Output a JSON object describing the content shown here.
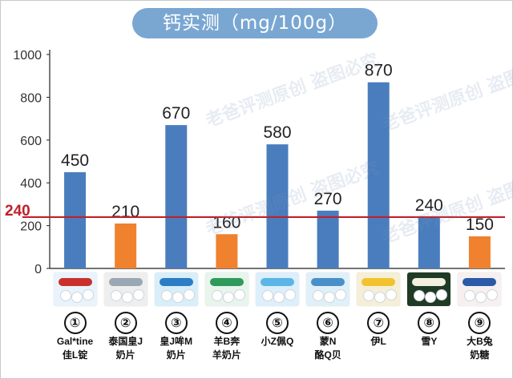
{
  "chart_data": {
    "type": "bar",
    "title": "钙实测（mg/100g）",
    "categories": [
      "①",
      "②",
      "③",
      "④",
      "⑤",
      "⑥",
      "⑦",
      "⑧",
      "⑨"
    ],
    "values": [
      450,
      210,
      670,
      160,
      580,
      270,
      870,
      240,
      150
    ],
    "bar_colors": [
      "#4a7dbd",
      "#f0812e",
      "#4a7dbd",
      "#f0812e",
      "#4a7dbd",
      "#4a7dbd",
      "#4a7dbd",
      "#4a7dbd",
      "#f0812e"
    ],
    "ylim": [
      0,
      1000
    ],
    "yticks": [
      0,
      200,
      400,
      600,
      800,
      1000
    ],
    "reference_line": {
      "value": 240,
      "label": "240",
      "color": "#c0202a"
    },
    "grid": false,
    "legend": "none"
  },
  "products": [
    {
      "number": "①",
      "name_lines": [
        "Gal*tine",
        "佳L锭"
      ]
    },
    {
      "number": "②",
      "name_lines": [
        "泰国皇J",
        "奶片"
      ]
    },
    {
      "number": "③",
      "name_lines": [
        "皇J哞M",
        "奶片"
      ]
    },
    {
      "number": "④",
      "name_lines": [
        "羊B奔",
        "羊奶片"
      ]
    },
    {
      "number": "⑤",
      "name_lines": [
        "小Z佩Q"
      ]
    },
    {
      "number": "⑥",
      "name_lines": [
        "蒙N",
        "酪Q贝"
      ]
    },
    {
      "number": "⑦",
      "name_lines": [
        "伊L"
      ]
    },
    {
      "number": "⑧",
      "name_lines": [
        "雪Y"
      ]
    },
    {
      "number": "⑨",
      "name_lines": [
        "大B兔",
        "奶糖"
      ]
    }
  ],
  "watermark": "老爸评测原创 盗图必究"
}
